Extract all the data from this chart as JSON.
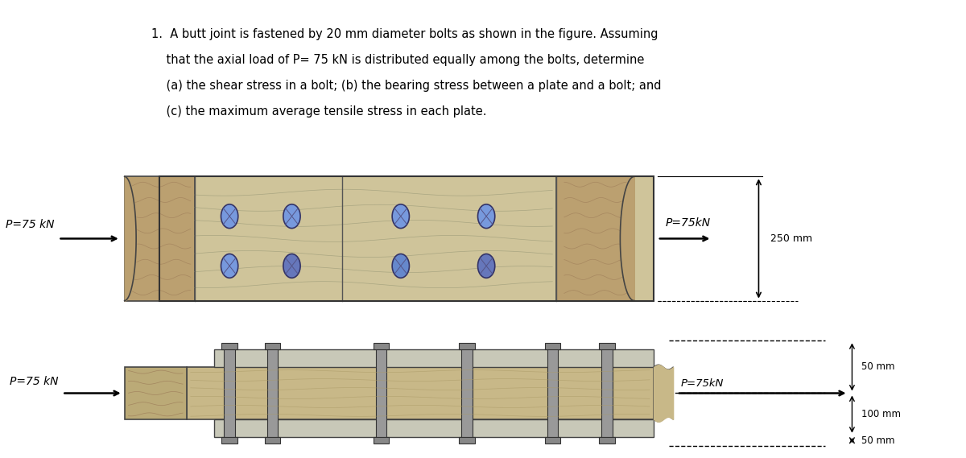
{
  "bg_color": "#ffffff",
  "title_lines": [
    "1.  A butt joint is fastened by 20 mm diameter bolts as shown in the figure. Assuming",
    "    that the axial load of P= 75 kN is distributed equally among the bolts, determine",
    "    (a) the shear stress in a bolt; (b) the bearing stress between a plate and a bolt; and",
    "    (c) the maximum average tensile stress in each plate."
  ],
  "plate_color": "#cfc49a",
  "wood_color": "#bba070",
  "grain_color": "#997755",
  "bolt_color_top": "#7799dd",
  "bolt_color_bot": "#6688cc",
  "bolt_edge": "#333366",
  "cover_color": "#c8c8b8",
  "main_plate_color": "#c8b888",
  "grain_color2": "#aa9966",
  "line_color": "#444444"
}
